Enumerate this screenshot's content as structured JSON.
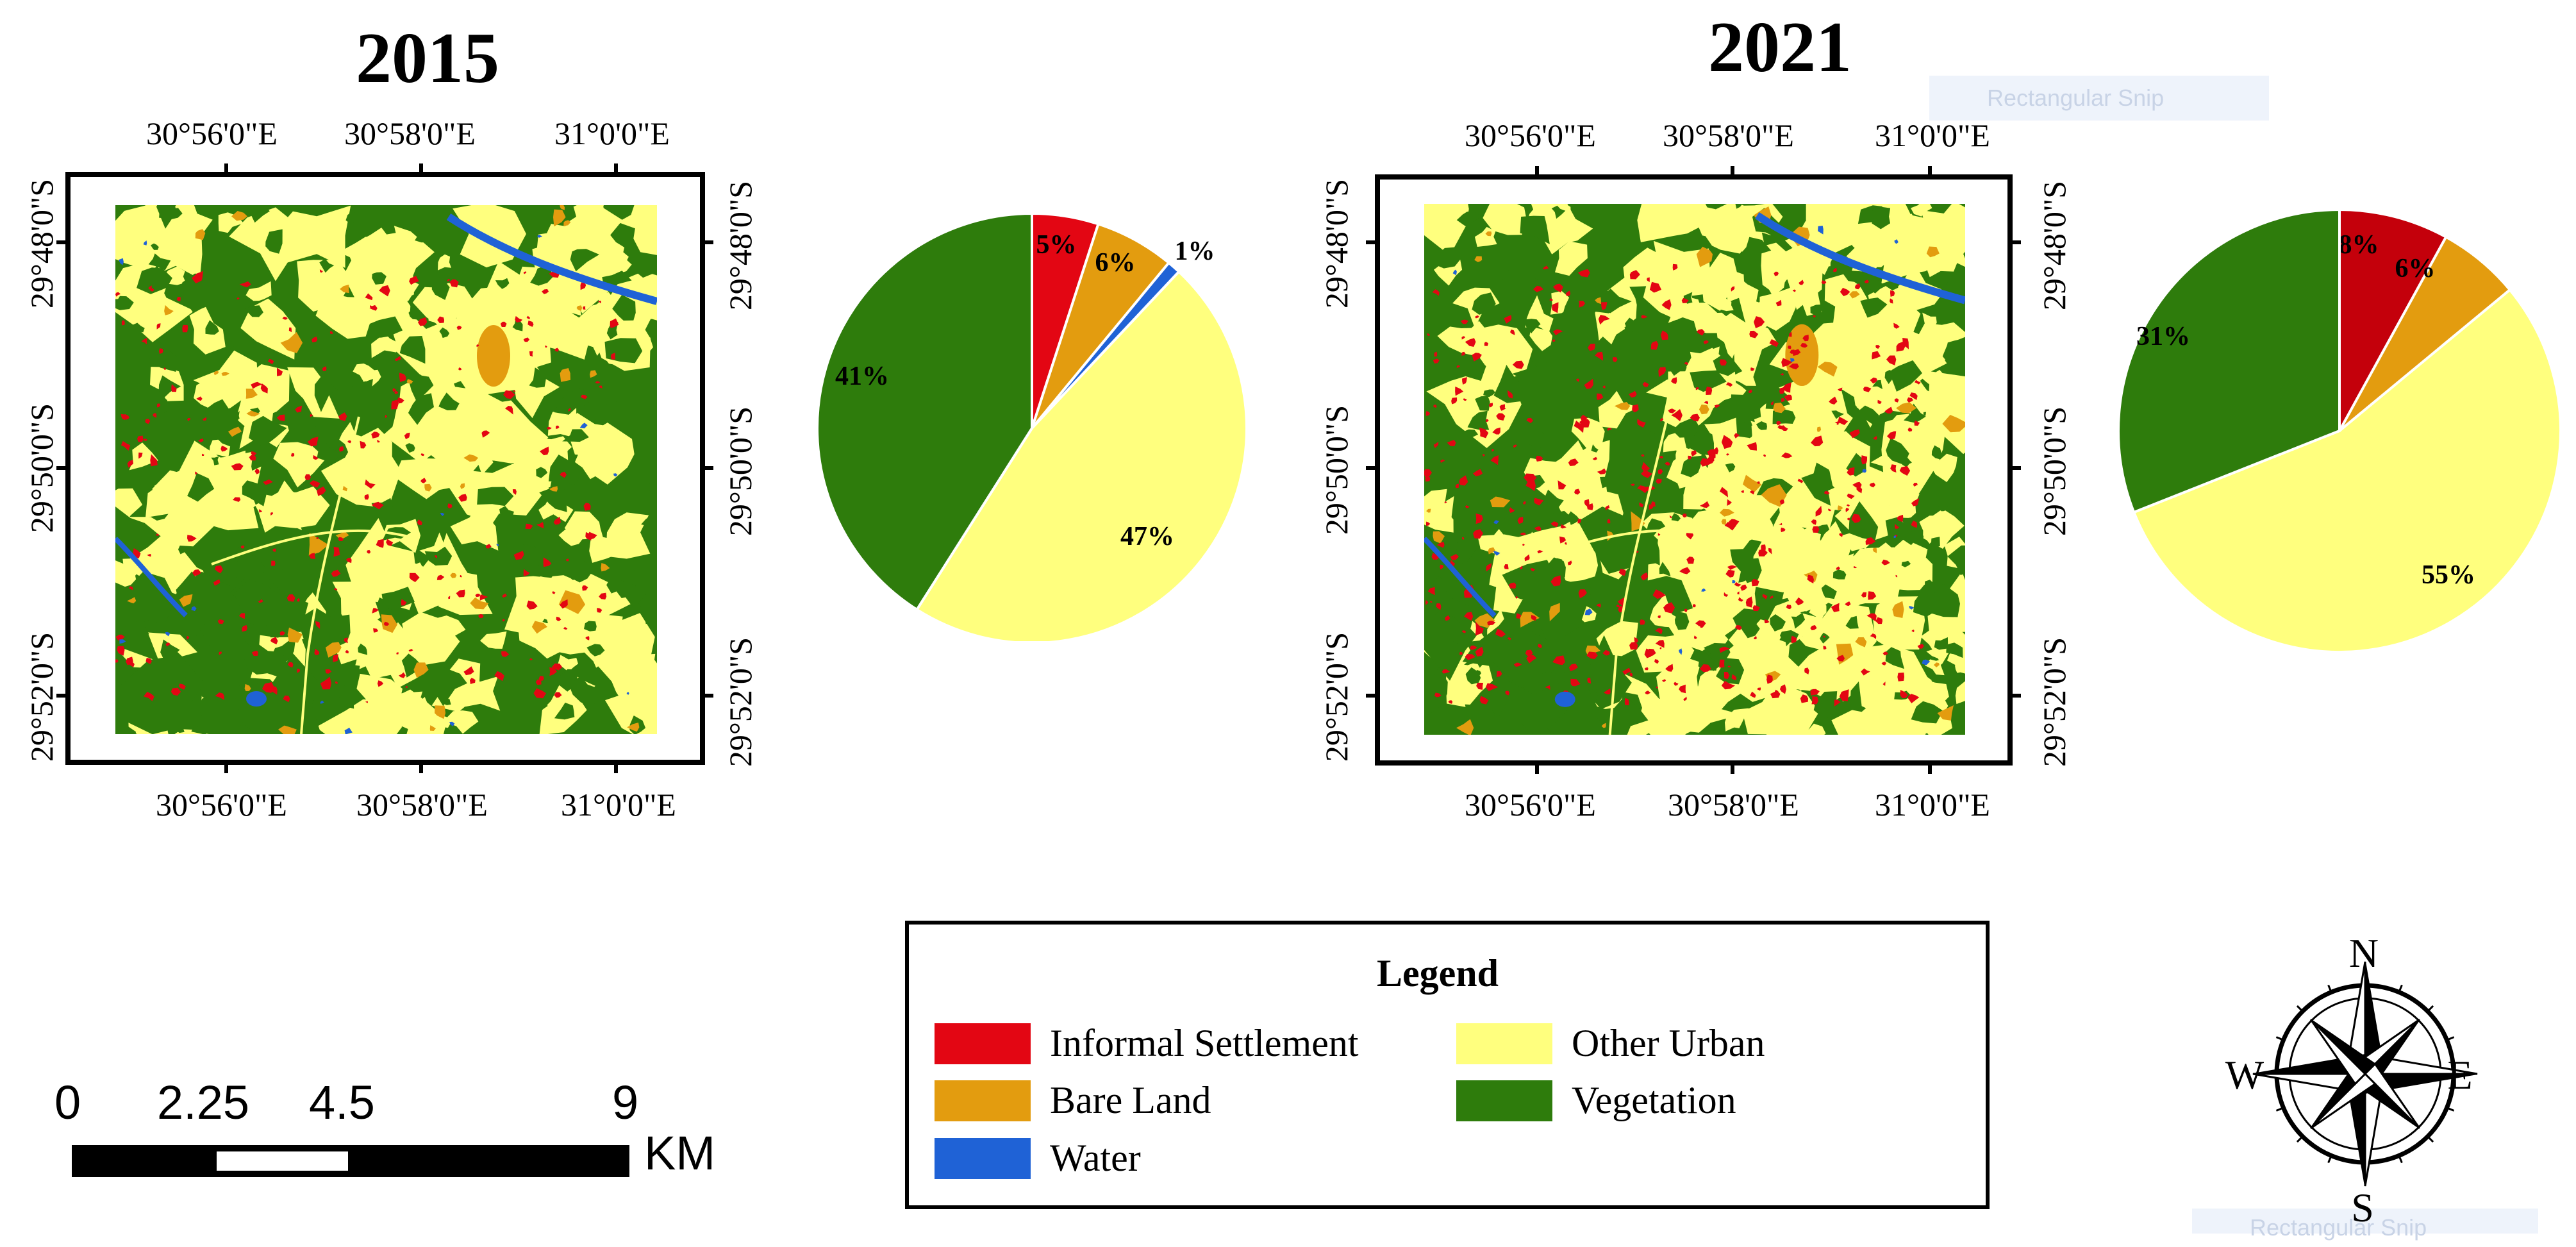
{
  "maps": [
    {
      "year": "2015",
      "lon_top": [
        "30°56'0\"E",
        "30°58'0\"E",
        "31°0'0\"E"
      ],
      "lon_bottom": [
        "30°56'0\"E",
        "30°58'0\"E",
        "31°0'0\"E"
      ],
      "lat_left": [
        "29°48'0\"S",
        "29°50'0\"S",
        "29°52'0\"S"
      ],
      "lat_right": [
        "29°48'0\"S",
        "29°50'0\"S",
        "29°52'0\"S"
      ],
      "chart_data": {
        "type": "pie",
        "title": "",
        "start_angle": "12 o'clock, clockwise",
        "slices": [
          {
            "category": "Informal Settlement",
            "value": 5,
            "label": "5%",
            "color": "#e30613"
          },
          {
            "category": "Bare Land",
            "value": 6,
            "label": "6%",
            "color": "#e39c0f"
          },
          {
            "category": "Water",
            "value": 1,
            "label": "1%",
            "color": "#1f62d6"
          },
          {
            "category": "Other Urban",
            "value": 47,
            "label": "47%",
            "color": "#ffff7e"
          },
          {
            "category": "Vegetation",
            "value": 41,
            "label": "41%",
            "color": "#2e7c0c"
          }
        ]
      }
    },
    {
      "year": "2021",
      "lon_top": [
        "30°56'0\"E",
        "30°58'0\"E",
        "31°0'0\"E"
      ],
      "lon_bottom": [
        "30°56'0\"E",
        "30°58'0\"E",
        "31°0'0\"E"
      ],
      "lat_left": [
        "29°48'0\"S",
        "29°50'0\"S",
        "29°52'0\"S"
      ],
      "lat_right": [
        "29°48'0\"S",
        "29°50'0\"S",
        "29°52'0\"S"
      ],
      "chart_data": {
        "type": "pie",
        "title": "",
        "start_angle": "12 o'clock, clockwise",
        "slices": [
          {
            "category": "Informal Settlement",
            "value": 8,
            "label": "8%",
            "color": "#c4000b"
          },
          {
            "category": "Bare Land",
            "value": 6,
            "label": "6%",
            "color": "#e39c0f"
          },
          {
            "category": "Other Urban",
            "value": 55,
            "label": "55%",
            "color": "#ffff7e"
          },
          {
            "category": "Vegetation",
            "value": 31,
            "label": "31%",
            "color": "#2e7c0c"
          }
        ]
      }
    }
  ],
  "legend": {
    "title": "Legend",
    "items": [
      {
        "label": "Informal Settlement",
        "color": "#e30613"
      },
      {
        "label": "Bare Land",
        "color": "#e39c0f"
      },
      {
        "label": "Water",
        "color": "#1f62d6"
      },
      {
        "label": "Other Urban",
        "color": "#ffff7e"
      },
      {
        "label": "Vegetation",
        "color": "#2e7c0c"
      }
    ]
  },
  "scale_bar": {
    "labels": [
      "0",
      "2.25",
      "4.5",
      "9"
    ],
    "unit": "KM"
  },
  "compass": {
    "north": "N",
    "south": "S",
    "east": "E",
    "west": "W"
  },
  "colors": {
    "vegetation": "#2e7c0c",
    "other_urban": "#ffff7e",
    "informal": "#e30613",
    "bare": "#e39c0f",
    "water": "#1f62d6"
  },
  "overlays": {
    "snip_top": "Rectangular Snip",
    "snip_bottom": "Rectangular Snip"
  }
}
